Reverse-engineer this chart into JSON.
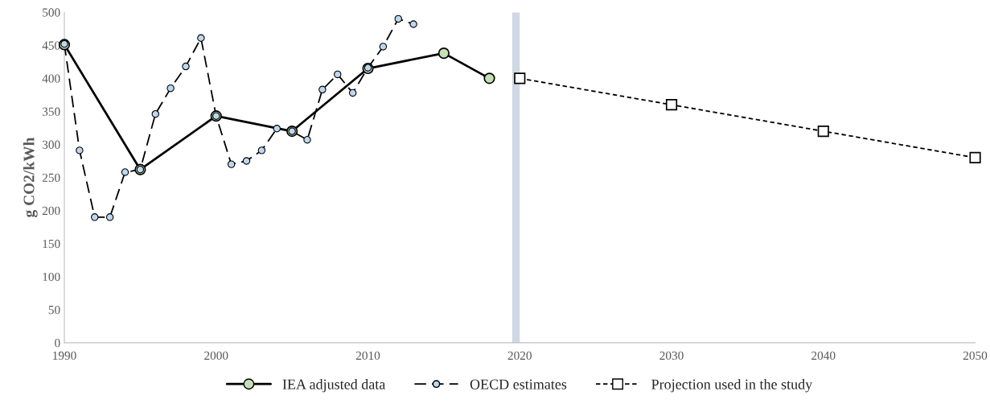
{
  "chart_data": {
    "type": "line",
    "ylabel": "g CO2/kWh",
    "xlim": [
      1990,
      2050
    ],
    "xticks": [
      1990,
      2000,
      2010,
      2020,
      2030,
      2040,
      2050
    ],
    "ylim": [
      0,
      500
    ],
    "yticks": [
      0,
      50,
      100,
      150,
      200,
      250,
      300,
      350,
      400,
      450,
      500
    ],
    "grid": false,
    "legend": "bottom",
    "bands": [
      {
        "axis": "x",
        "from": 2019.5,
        "to": 2020,
        "color": "#d0d8e4"
      }
    ],
    "series": [
      {
        "name": "IEA adjusted data",
        "color": "#c5e0b4",
        "marker": "circle",
        "line_style": "solid",
        "x": [
          1990,
          1995,
          2000,
          2005,
          2010,
          2015,
          2018
        ],
        "values": [
          451,
          262,
          343,
          320,
          415,
          438,
          400
        ]
      },
      {
        "name": "OECD estimates",
        "color": "#bdd7ee",
        "marker": "circle",
        "line_style": "dashed",
        "x": [
          1990,
          1991,
          1992,
          1993,
          1994,
          1995,
          1996,
          1997,
          1998,
          1999,
          2000,
          2001,
          2002,
          2003,
          2004,
          2005,
          2006,
          2007,
          2008,
          2009,
          2010,
          2011,
          2012,
          2013
        ],
        "values": [
          452,
          291,
          190,
          190,
          258,
          262,
          346,
          385,
          418,
          461,
          343,
          270,
          275,
          291,
          324,
          320,
          307,
          383,
          406,
          378,
          416,
          448,
          490,
          482
        ]
      },
      {
        "name": "Projection used in the study",
        "color": "#ffffff",
        "marker": "square",
        "line_style": "dotted",
        "x": [
          2020,
          2030,
          2040,
          2050
        ],
        "values": [
          400,
          360,
          320,
          280
        ]
      }
    ]
  }
}
